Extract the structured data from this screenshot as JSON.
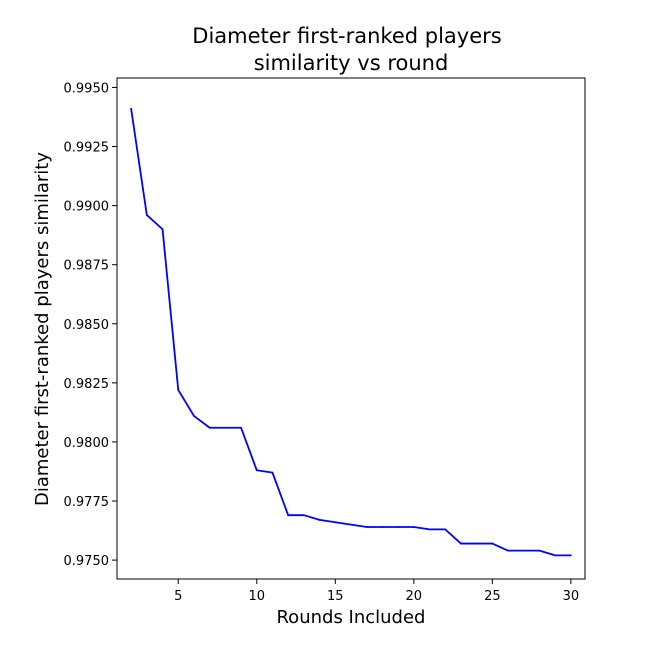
{
  "chart_data": {
    "type": "line",
    "title_lines": [
      "Diameter first-ranked players",
      "similarity vs round"
    ],
    "xlabel": "Rounds Included",
    "ylabel": "Diameter first-ranked players similarity",
    "xlim": [
      1.1,
      30.9
    ],
    "ylim": [
      0.9742,
      0.9954
    ],
    "xticks": [
      5,
      10,
      15,
      20,
      25,
      30
    ],
    "xtick_labels": [
      "5",
      "10",
      "15",
      "20",
      "25",
      "30"
    ],
    "yticks": [
      0.975,
      0.9775,
      0.98,
      0.9825,
      0.985,
      0.9875,
      0.99,
      0.9925,
      0.995
    ],
    "ytick_labels": [
      "0.9750",
      "0.9775",
      "0.9800",
      "0.9825",
      "0.9850",
      "0.9875",
      "0.9900",
      "0.9925",
      "0.9950"
    ],
    "grid": false,
    "series": [
      {
        "color": "#0000ff",
        "x": [
          2,
          3,
          4,
          5,
          6,
          7,
          8,
          9,
          10,
          11,
          12,
          13,
          14,
          15,
          16,
          17,
          18,
          19,
          20,
          21,
          22,
          23,
          24,
          25,
          26,
          27,
          28,
          29,
          30
        ],
        "y": [
          0.9941,
          0.9896,
          0.989,
          0.9822,
          0.9811,
          0.9806,
          0.9806,
          0.9806,
          0.9788,
          0.9787,
          0.9769,
          0.9769,
          0.9767,
          0.9766,
          0.9765,
          0.9764,
          0.9764,
          0.9764,
          0.9764,
          0.9763,
          0.9763,
          0.9757,
          0.9757,
          0.9757,
          0.9754,
          0.9754,
          0.9754,
          0.9752,
          0.9752
        ]
      }
    ]
  }
}
